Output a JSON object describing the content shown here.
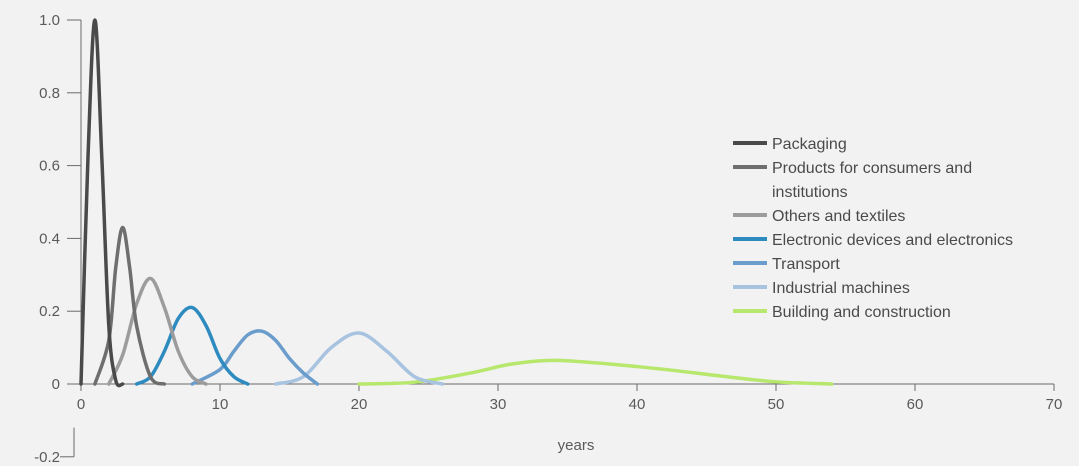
{
  "chart_data": {
    "type": "line",
    "title": "",
    "xlabel": "years",
    "ylabel": "",
    "xlim": [
      0,
      70
    ],
    "ylim": [
      -0.2,
      1.0
    ],
    "x_ticks": [
      0,
      10,
      20,
      30,
      40,
      50,
      60,
      70
    ],
    "x_tick_labels": [
      "0",
      "10",
      "20",
      "30",
      "40",
      "50",
      "60",
      "70"
    ],
    "y_ticks": [
      -0.2,
      0,
      0.2,
      0.4,
      0.6,
      0.8,
      1.0
    ],
    "y_tick_labels": [
      "-0.2",
      "0",
      "0.2",
      "0.4",
      "0.6",
      "0.8",
      "1.0"
    ],
    "grid": false,
    "legend_position": "right",
    "series": [
      {
        "name": "Packaging",
        "color": "#4a4a4a",
        "x": [
          0,
          0.5,
          1,
          1.5,
          2,
          2.5,
          3
        ],
        "y": [
          0,
          0.62,
          1.0,
          0.62,
          0.16,
          0.01,
          0
        ]
      },
      {
        "name": "Products for consumers and institutions",
        "color": "#6e6e6e",
        "x": [
          1,
          2,
          2.5,
          3,
          3.5,
          4,
          5,
          6
        ],
        "y": [
          0,
          0.12,
          0.32,
          0.43,
          0.32,
          0.16,
          0.02,
          0
        ]
      },
      {
        "name": "Others and textiles",
        "color": "#9c9c9c",
        "x": [
          2,
          3,
          4,
          5,
          6,
          7,
          8,
          9
        ],
        "y": [
          0,
          0.08,
          0.22,
          0.29,
          0.21,
          0.09,
          0.02,
          0
        ]
      },
      {
        "name": "Electronic devices and electronics",
        "color": "#2e8bc0",
        "x": [
          4,
          5,
          6,
          7,
          8,
          9,
          10,
          11,
          12
        ],
        "y": [
          0,
          0.02,
          0.09,
          0.18,
          0.21,
          0.16,
          0.07,
          0.02,
          0
        ]
      },
      {
        "name": "Transport",
        "color": "#6a9ccc",
        "x": [
          8,
          10,
          11,
          12,
          13,
          14,
          15,
          16,
          17
        ],
        "y": [
          0,
          0.04,
          0.09,
          0.135,
          0.145,
          0.12,
          0.07,
          0.03,
          0
        ]
      },
      {
        "name": "Industrial machines",
        "color": "#a7c3e0",
        "x": [
          14,
          16,
          18,
          20,
          22,
          24,
          26
        ],
        "y": [
          0,
          0.02,
          0.1,
          0.14,
          0.09,
          0.02,
          0
        ]
      },
      {
        "name": "Building and construction",
        "color": "#b7e76c",
        "x": [
          20,
          24,
          28,
          31,
          34,
          38,
          42,
          46,
          50,
          54
        ],
        "y": [
          0,
          0.005,
          0.03,
          0.055,
          0.065,
          0.055,
          0.04,
          0.022,
          0.006,
          0
        ]
      }
    ],
    "legend": [
      {
        "label": "Packaging",
        "color": "#4a4a4a",
        "lines": [
          "Packaging"
        ]
      },
      {
        "label": "Products for consumers and institutions",
        "color": "#6e6e6e",
        "lines": [
          "Products for consumers and",
          "institutions"
        ]
      },
      {
        "label": "Others and textiles",
        "color": "#9c9c9c",
        "lines": [
          "Others and textiles"
        ]
      },
      {
        "label": "Electronic devices and electronics",
        "color": "#2e8bc0",
        "lines": [
          "Electronic devices and electronics"
        ]
      },
      {
        "label": "Transport",
        "color": "#6a9ccc",
        "lines": [
          "Transport"
        ]
      },
      {
        "label": "Industrial machines",
        "color": "#a7c3e0",
        "lines": [
          "Industrial machines"
        ]
      },
      {
        "label": "Building and construction",
        "color": "#b7e76c",
        "lines": [
          "Building and construction"
        ]
      }
    ]
  }
}
